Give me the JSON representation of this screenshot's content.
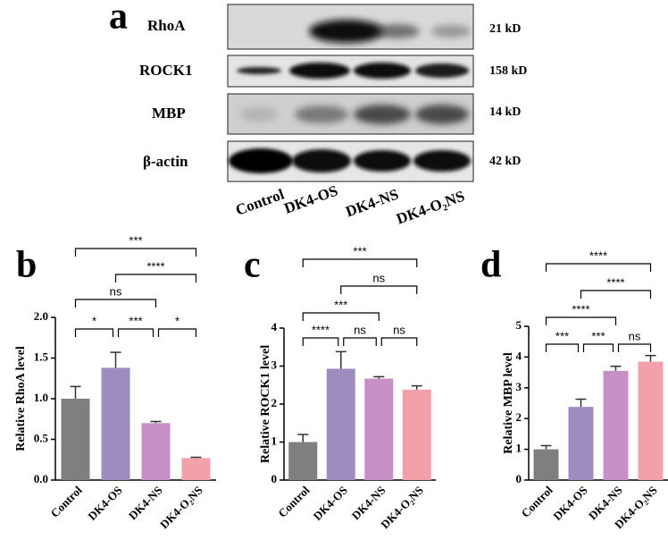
{
  "blot": {
    "letter": "a",
    "proteins": [
      "RhoA",
      "ROCK1",
      "MBP",
      "β-actin"
    ],
    "sizes": [
      "21 kD",
      "158 kD",
      "14 kD",
      "42 kD"
    ],
    "lanes": [
      "Control",
      "DK4-OS",
      "DK4-NS",
      "DK4-O₂NS"
    ]
  },
  "chart_data": [
    {
      "type": "bar",
      "letter": "b",
      "y_label": "Relative RhoA level",
      "categories": [
        "Control",
        "DK4-OS",
        "DK4-NS",
        "DK4-O₂NS"
      ],
      "values": [
        1.0,
        1.38,
        0.7,
        0.27
      ],
      "errors": [
        0.15,
        0.19,
        0.02,
        0.01
      ],
      "colors": [
        "#7f7f7f",
        "#9d8cbf",
        "#c690c6",
        "#f2a1ab"
      ],
      "ylim": [
        0,
        2
      ],
      "yticks": [
        {
          "value": 0,
          "label": "0.0"
        },
        0.5,
        {
          "value": 1,
          "label": "1.0"
        },
        1.5,
        {
          "value": 2,
          "label": "2.0"
        }
      ],
      "brackets": [
        {
          "from": 0,
          "to": 1,
          "label": "*"
        },
        {
          "from": 1,
          "to": 2,
          "label": "***"
        },
        {
          "from": 2,
          "to": 3,
          "label": "*"
        },
        {
          "from": 0,
          "to": 2,
          "label": "ns"
        },
        {
          "from": 1,
          "to": 3,
          "label": "****"
        },
        {
          "from": 0,
          "to": 3,
          "label": "***"
        }
      ]
    },
    {
      "type": "bar",
      "letter": "c",
      "y_label": "Relative ROCK1 level",
      "categories": [
        "Control",
        "DK4-OS",
        "DK4-NS",
        "DK4-O₂NS"
      ],
      "values": [
        1.0,
        2.93,
        2.67,
        2.38
      ],
      "errors": [
        0.2,
        0.45,
        0.05,
        0.1
      ],
      "colors": [
        "#7f7f7f",
        "#9d8cbf",
        "#c690c6",
        "#f2a1ab"
      ],
      "ylim": [
        0,
        4
      ],
      "yticks": [
        0,
        1,
        2,
        3,
        4
      ],
      "brackets": [
        {
          "from": 0,
          "to": 1,
          "label": "****"
        },
        {
          "from": 1,
          "to": 2,
          "label": "ns"
        },
        {
          "from": 2,
          "to": 3,
          "label": "ns"
        },
        {
          "from": 0,
          "to": 2,
          "label": "***"
        },
        {
          "from": 1,
          "to": 3,
          "label": "ns"
        },
        {
          "from": 0,
          "to": 3,
          "label": "***"
        }
      ]
    },
    {
      "type": "bar",
      "letter": "d",
      "y_label": "Relative MBP level",
      "categories": [
        "Control",
        "DK4-OS",
        "DK4-NS",
        "DK4-O₂NS"
      ],
      "values": [
        1.0,
        2.38,
        3.55,
        3.85
      ],
      "errors": [
        0.12,
        0.25,
        0.15,
        0.2
      ],
      "colors": [
        "#7f7f7f",
        "#9d8cbf",
        "#c690c6",
        "#f2a1ab"
      ],
      "ylim": [
        0,
        5
      ],
      "yticks": [
        0,
        1,
        2,
        3,
        4,
        5
      ],
      "brackets": [
        {
          "from": 0,
          "to": 1,
          "label": "***"
        },
        {
          "from": 1,
          "to": 2,
          "label": "***"
        },
        {
          "from": 2,
          "to": 3,
          "label": "ns"
        },
        {
          "from": 0,
          "to": 2,
          "label": "****"
        },
        {
          "from": 1,
          "to": 3,
          "label": "****"
        },
        {
          "from": 0,
          "to": 3,
          "label": "****"
        }
      ]
    }
  ]
}
